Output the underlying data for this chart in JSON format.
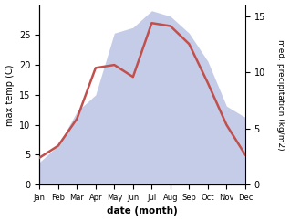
{
  "months": [
    "Jan",
    "Feb",
    "Mar",
    "Apr",
    "May",
    "Jun",
    "Jul",
    "Aug",
    "Sep",
    "Oct",
    "Nov",
    "Dec"
  ],
  "temp": [
    4.5,
    6.5,
    11.0,
    19.5,
    20.0,
    18.0,
    27.0,
    26.5,
    23.5,
    17.0,
    10.0,
    5.0
  ],
  "precip": [
    2.0,
    3.5,
    6.5,
    8.0,
    13.5,
    14.0,
    15.5,
    15.0,
    13.5,
    11.0,
    7.0,
    6.0
  ],
  "temp_color": "#c0504d",
  "precip_fill_color": "#c5cce8",
  "precip_edge_color": "#c5cce8",
  "ylabel_left": "max temp (C)",
  "ylabel_right": "med. precipitation (kg/m2)",
  "xlabel": "date (month)",
  "ylim_left": [
    0,
    30
  ],
  "ylim_right": [
    0,
    16
  ],
  "yticks_left": [
    0,
    5,
    10,
    15,
    20,
    25
  ],
  "yticks_right": [
    0,
    5,
    10,
    15
  ],
  "bg_color": "#ffffff"
}
